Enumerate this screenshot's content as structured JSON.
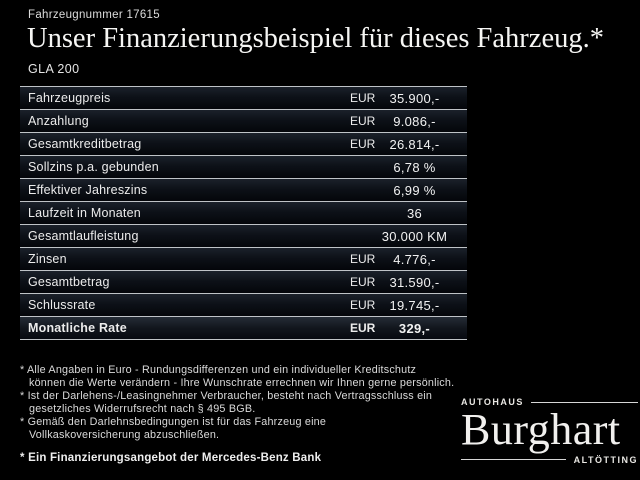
{
  "header": {
    "vehicle_number": "Fahrzeugnummer 17615",
    "title": "Unser Finanzierungsbeispiel für dieses Fahrzeug.*",
    "model": "GLA 200"
  },
  "table": {
    "rows": [
      {
        "label": "Fahrzeugpreis",
        "currency": "EUR",
        "value": "35.900,-"
      },
      {
        "label": "Anzahlung",
        "currency": "EUR",
        "value": "9.086,-"
      },
      {
        "label": "Gesamtkreditbetrag",
        "currency": "EUR",
        "value": "26.814,-"
      },
      {
        "label": "Sollzins p.a. gebunden",
        "currency": "",
        "value": "6,78 %"
      },
      {
        "label": "Effektiver Jahreszins",
        "currency": "",
        "value": "6,99 %"
      },
      {
        "label": "Laufzeit in Monaten",
        "currency": "",
        "value": "36"
      },
      {
        "label": "Gesamtlaufleistung",
        "currency": "",
        "value": "30.000 KM"
      },
      {
        "label": "Zinsen",
        "currency": "EUR",
        "value": "4.776,-"
      },
      {
        "label": "Gesamtbetrag",
        "currency": "EUR",
        "value": "31.590,-"
      },
      {
        "label": "Schlussrate",
        "currency": "EUR",
        "value": "19.745,-"
      },
      {
        "label": "Monatliche Rate",
        "currency": "EUR",
        "value": "329,-"
      }
    ]
  },
  "footnotes": [
    {
      "lines": [
        "* Alle Angaben in Euro - Rundungsdifferenzen und ein individueller Kreditschutz",
        "können die Werte verändern - Ihre Wunschrate errechnen wir Ihnen gerne persönlich."
      ]
    },
    {
      "lines": [
        "* Ist der Darlehens-/Leasingnehmer Verbraucher, besteht nach Vertragsschluss ein",
        "gesetzliches Widerrufsrecht nach § 495 BGB."
      ]
    },
    {
      "lines": [
        "* Gemäß den Darlehnsbedingungen ist für das Fahrzeug eine",
        "Vollkaskoversicherung abzuschließen."
      ]
    }
  ],
  "footnote_bold": "* Ein Finanzierungsangebot der Mercedes-Benz Bank",
  "dealer_logo": {
    "top_label": "Autohaus",
    "name": "Burghart",
    "bottom_label": "Altötting"
  },
  "colors": {
    "background": "#000000",
    "separator": "#bfc3c7",
    "text": "#ececec",
    "row_gradient_top": "#1b212a"
  }
}
